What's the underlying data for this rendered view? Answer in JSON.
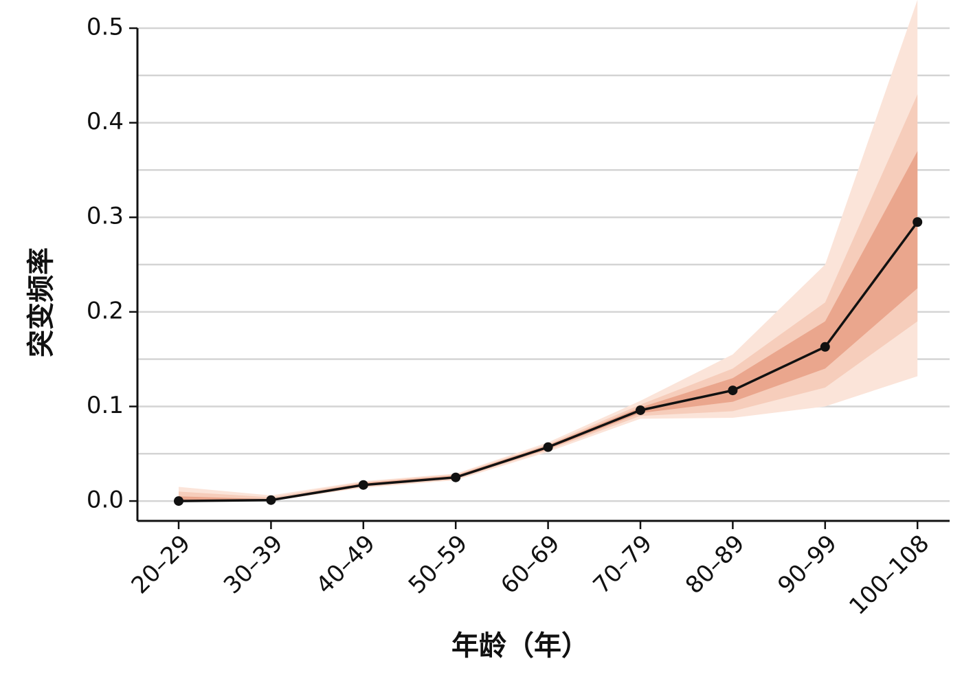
{
  "chart_data": {
    "type": "line",
    "y_label": "突变频率",
    "x_label": "年龄（年）",
    "categories": [
      "20–29",
      "30–39",
      "40–49",
      "50–59",
      "60–69",
      "70–79",
      "80–89",
      "90–99",
      "100–108"
    ],
    "series": [
      {
        "color": "#111111",
        "values": [
          0.0,
          0.001,
          0.017,
          0.025,
          0.057,
          0.096,
          0.117,
          0.163,
          0.295
        ]
      }
    ],
    "bands": [
      {
        "color": "#fbe4d9",
        "lower": [
          0.0,
          0.0,
          0.014,
          0.022,
          0.052,
          0.087,
          0.088,
          0.1,
          0.132
        ],
        "upper": [
          0.015,
          0.006,
          0.021,
          0.029,
          0.062,
          0.106,
          0.155,
          0.25,
          0.53
        ]
      },
      {
        "color": "#f6cdbb",
        "lower": [
          0.0,
          0.0,
          0.015,
          0.023,
          0.054,
          0.09,
          0.095,
          0.12,
          0.19
        ],
        "upper": [
          0.01,
          0.004,
          0.02,
          0.028,
          0.06,
          0.102,
          0.14,
          0.21,
          0.43
        ]
      },
      {
        "color": "#eaa68d",
        "lower": [
          0.0,
          0.0,
          0.016,
          0.024,
          0.055,
          0.093,
          0.105,
          0.14,
          0.225
        ],
        "upper": [
          0.005,
          0.002,
          0.019,
          0.027,
          0.059,
          0.099,
          0.13,
          0.19,
          0.37
        ]
      }
    ],
    "ylim": [
      -0.021,
      0.5
    ],
    "yticks": [
      {
        "value": 0,
        "label": "0.0"
      },
      0.1,
      0.2,
      0.3,
      0.4,
      0.5
    ],
    "minor_grid": [
      0.05,
      0.15,
      0.25,
      0.35,
      0.45
    ],
    "grid": true
  }
}
